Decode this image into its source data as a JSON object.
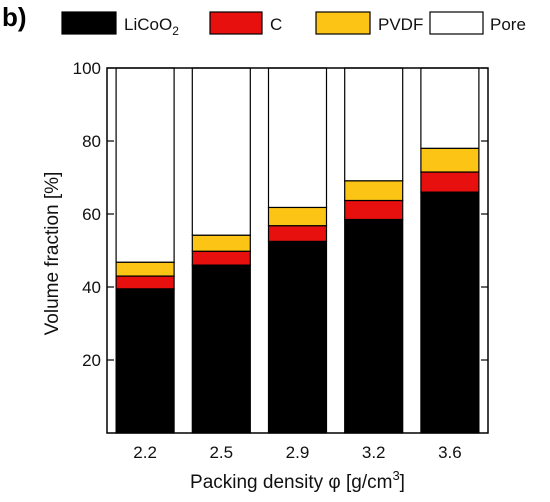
{
  "panel_label": "b)",
  "chart_data": {
    "type": "bar",
    "stacked": true,
    "categories": [
      "2.2",
      "2.5",
      "2.9",
      "3.2",
      "3.6"
    ],
    "series": [
      {
        "name": "LiCoO",
        "name_subscript": "2",
        "color": "#000000",
        "values": [
          39.5,
          46.0,
          52.5,
          58.5,
          66.0
        ]
      },
      {
        "name": "C",
        "color": "#e8100f",
        "values": [
          3.5,
          3.8,
          4.3,
          5.2,
          5.5
        ]
      },
      {
        "name": "PVDF",
        "color": "#fcc515",
        "values": [
          3.8,
          4.4,
          5.0,
          5.4,
          6.5
        ]
      },
      {
        "name": "Pore",
        "color": "#ffffff",
        "values": [
          53.2,
          45.8,
          38.2,
          30.9,
          22.0
        ]
      }
    ],
    "ylabel": "Volume fraction [%]",
    "xlabel": "Packing density φ [g/cm",
    "xlabel_superscript": "3",
    "xlabel_suffix": "]",
    "ylim": [
      0,
      100
    ],
    "yticks": [
      "20",
      "40",
      "60",
      "80",
      "100"
    ],
    "ytick_values": [
      20,
      40,
      60,
      80,
      100
    ],
    "grid": false,
    "legend_position": "top"
  }
}
